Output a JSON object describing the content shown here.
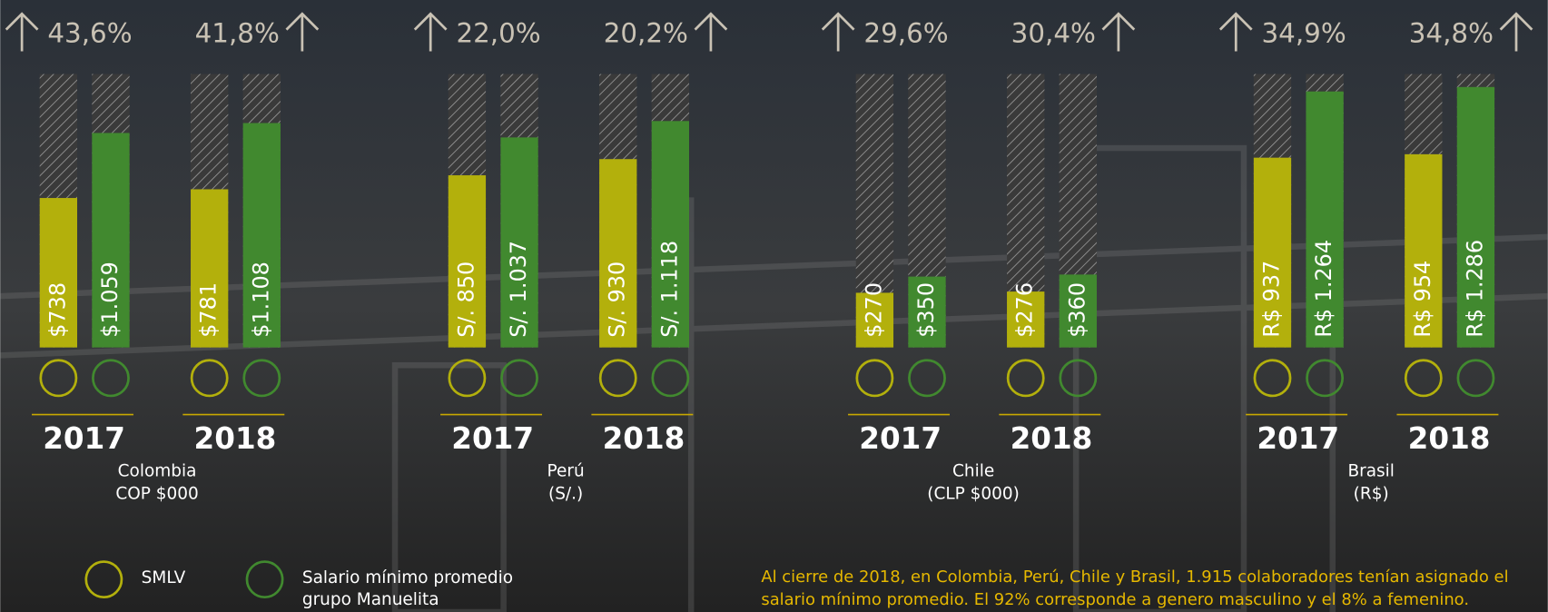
{
  "chart_data": [
    {
      "type": "bar",
      "title": "Colombia",
      "subtitle": "COP $000",
      "categories": [
        "2017",
        "2018"
      ],
      "ylim": [
        0,
        1350
      ],
      "series": [
        {
          "color": "#b3b00c",
          "values": [
            738,
            781
          ],
          "value_labels": [
            "$738",
            "$781"
          ]
        },
        {
          "color": "#41892f",
          "values": [
            1059,
            1108
          ],
          "value_labels": [
            "$1.059",
            "$1.108"
          ]
        }
      ],
      "change": {
        "values": [
          43.6,
          41.8
        ],
        "value_labels": [
          "43,6%",
          "41,8%"
        ]
      }
    },
    {
      "type": "bar",
      "title": "Perú",
      "subtitle": "(S/.)",
      "categories": [
        "2017",
        "2018"
      ],
      "ylim": [
        0,
        1350
      ],
      "series": [
        {
          "color": "#b3b00c",
          "values": [
            850,
            930
          ],
          "value_labels": [
            "S/. 850",
            "S/. 930"
          ]
        },
        {
          "color": "#41892f",
          "values": [
            1037,
            1118
          ],
          "value_labels": [
            "S/. 1.037",
            "S/. 1.118"
          ]
        }
      ],
      "change": {
        "values": [
          22.0,
          20.2
        ],
        "value_labels": [
          "22,0%",
          "20,2%"
        ]
      }
    },
    {
      "type": "bar",
      "title": "Chile",
      "subtitle": "(CLP $000)",
      "categories": [
        "2017",
        "2018"
      ],
      "ylim": [
        0,
        1350
      ],
      "series": [
        {
          "color": "#b3b00c",
          "values": [
            270,
            276
          ],
          "value_labels": [
            "$270",
            "$276"
          ]
        },
        {
          "color": "#41892f",
          "values": [
            350,
            360
          ],
          "value_labels": [
            "$350",
            "$360"
          ]
        }
      ],
      "change": {
        "values": [
          29.6,
          30.4
        ],
        "value_labels": [
          "29,6%",
          "30,4%"
        ]
      }
    },
    {
      "type": "bar",
      "title": "Brasil",
      "subtitle": "(R$)",
      "categories": [
        "2017",
        "2018"
      ],
      "ylim": [
        0,
        1350
      ],
      "series": [
        {
          "color": "#b3b00c",
          "values": [
            937,
            954
          ],
          "value_labels": [
            "R$ 937",
            "R$ 954"
          ]
        },
        {
          "color": "#41892f",
          "values": [
            1264,
            1286
          ],
          "value_labels": [
            "R$ 1.264",
            "R$ 1.286"
          ]
        }
      ],
      "change": {
        "values": [
          34.9,
          34.8
        ],
        "value_labels": [
          "34,9%",
          "34,8%"
        ]
      }
    }
  ],
  "legend": [
    {
      "name": [
        "SMLV"
      ],
      "color": "#b3b00c"
    },
    {
      "name": [
        "Salario mínimo promedio",
        "grupo Manuelita"
      ],
      "color": "#41892f"
    }
  ],
  "footnote": [
    "Al cierre de 2018, en Colombia, Perú, Chile y Brasil, 1.915 colaboradores tenían asignado el",
    "salario mínimo promedio. El 92% corresponde a genero masculino y el 8% a femenino."
  ]
}
